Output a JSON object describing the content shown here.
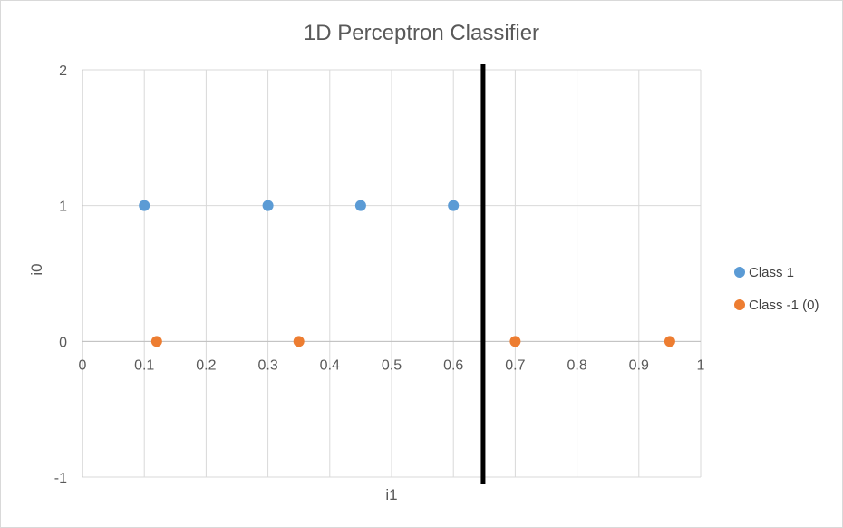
{
  "chart_data": {
    "type": "scatter",
    "title": "1D Perceptron Classifier",
    "xlabel": "i1",
    "ylabel": "i0",
    "xlim": [
      0,
      1
    ],
    "ylim": [
      -1,
      2
    ],
    "x_ticks": [
      "0",
      "0.1",
      "0.2",
      "0.3",
      "0.4",
      "0.5",
      "0.6",
      "0.7",
      "0.8",
      "0.9",
      "1"
    ],
    "y_ticks": [
      "-1",
      "0",
      "1",
      "2"
    ],
    "grid": true,
    "legend_position": "right",
    "series": [
      {
        "name": "Class 1",
        "color": "#5b9bd5",
        "points": [
          {
            "x": 0.1,
            "y": 1
          },
          {
            "x": 0.3,
            "y": 1
          },
          {
            "x": 0.45,
            "y": 1
          },
          {
            "x": 0.6,
            "y": 1
          }
        ]
      },
      {
        "name": "Class -1 (0)",
        "color": "#ed7d31",
        "points": [
          {
            "x": 0.12,
            "y": 0
          },
          {
            "x": 0.35,
            "y": 0
          },
          {
            "x": 0.7,
            "y": 0
          },
          {
            "x": 0.95,
            "y": 0
          }
        ]
      }
    ],
    "decision_boundary": {
      "x": 0.648,
      "color": "#000000"
    }
  }
}
